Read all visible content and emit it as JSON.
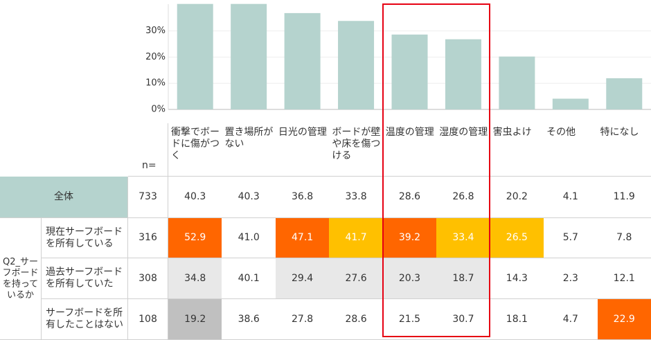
{
  "chart_data": {
    "type": "bar",
    "categories": [
      "衝撃でボードに傷がつく",
      "置き場所がない",
      "日光の管理",
      "ボードが壁や床を傷つける",
      "温度の管理",
      "湿度の管理",
      "害虫よけ",
      "その他",
      "特になし"
    ],
    "values": [
      40.3,
      40.3,
      36.8,
      33.8,
      28.6,
      26.8,
      20.2,
      4.1,
      11.9
    ],
    "color": "#b5d3ce",
    "ylim": [
      0,
      41.8
    ],
    "yticks": [
      {
        "value": 0,
        "label": "0%"
      },
      {
        "value": 10,
        "label": "10%"
      },
      {
        "value": 20,
        "label": "20%"
      },
      {
        "value": 30,
        "label": "30%"
      }
    ],
    "grid": true
  },
  "table": {
    "n_header": "n=",
    "total": {
      "label": "全体",
      "n": 733
    },
    "group_label": "Q2_サーフボードを持っているか",
    "rows": [
      {
        "label": "現在サーフボードを所有している",
        "n": 316,
        "values": [
          "52.9",
          "41.0",
          "47.1",
          "41.7",
          "39.2",
          "33.4",
          "26.5",
          "5.7",
          "7.8"
        ],
        "fills": [
          "#ff6600",
          "#ffffff",
          "#ff6600",
          "#ffc000",
          "#ff6600",
          "#ffc000",
          "#ffc000",
          "#ffffff",
          "#ffffff"
        ]
      },
      {
        "label": "過去サーフボードを所有していた",
        "n": 308,
        "values": [
          "34.8",
          "40.1",
          "29.4",
          "27.6",
          "20.3",
          "18.7",
          "14.3",
          "2.3",
          "12.1"
        ],
        "fills": [
          "#e8e8e8",
          "#ffffff",
          "#e8e8e8",
          "#e8e8e8",
          "#e8e8e8",
          "#e8e8e8",
          "#ffffff",
          "#ffffff",
          "#ffffff"
        ]
      },
      {
        "label": "サーフボードを所有したことはない",
        "n": 108,
        "values": [
          "19.2",
          "38.6",
          "27.8",
          "28.6",
          "21.5",
          "30.7",
          "18.1",
          "4.7",
          "22.9"
        ],
        "fills": [
          "#c0c0c0",
          "#ffffff",
          "#ffffff",
          "#ffffff",
          "#ffffff",
          "#ffffff",
          "#ffffff",
          "#ffffff",
          "#ff6600"
        ]
      }
    ]
  }
}
